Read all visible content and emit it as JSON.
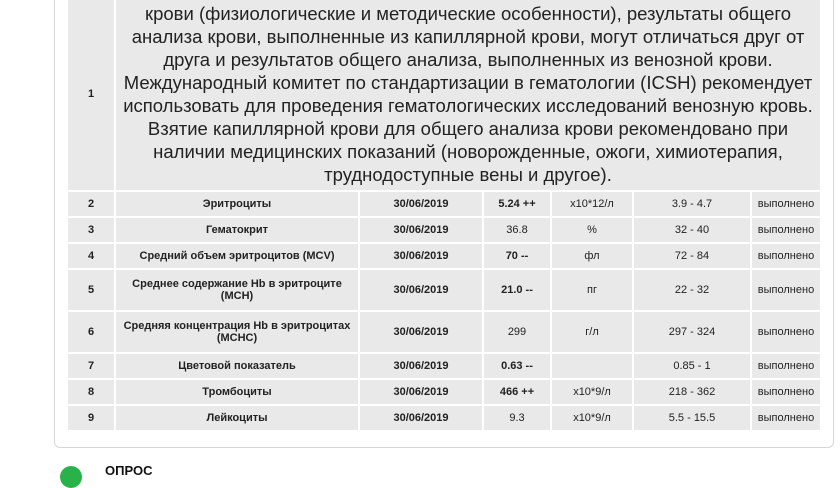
{
  "note_row": {
    "num": "1",
    "text": "крови (физиологические и методические особенности), результаты общего анализа крови, выполненные из капиллярной крови, могут отличаться друг от друга и результатов общего анализа, выполненных из венозной крови. Международный комитет по стандартизации в гематологии (ICSH) рекомендует использовать для проведения гематологических исследований венозную кровь. Взятие капиллярной крови для общего анализа крови рекомендовано при наличии медицинских показаний (новорожденные, ожоги, химиотерапия, труднодоступные вены и другое)."
  },
  "rows": [
    {
      "num": "2",
      "name": "Эритроциты",
      "date": "30/06/2019",
      "value": "5.24 ++",
      "value_bold": true,
      "unit": "x10*12/л",
      "ref": "3.9 - 4.7",
      "status": "выполнено"
    },
    {
      "num": "3",
      "name": "Гематокрит",
      "date": "30/06/2019",
      "value": "36.8",
      "value_bold": false,
      "unit": "%",
      "ref": "32 - 40",
      "status": "выполнено"
    },
    {
      "num": "4",
      "name": "Средний объем эритроцитов (MCV)",
      "date": "30/06/2019",
      "value": "70 --",
      "value_bold": true,
      "unit": "фл",
      "ref": "72 - 84",
      "status": "выполнено"
    },
    {
      "num": "5",
      "name": "Среднее содержание Hb в эритроците (MCH)",
      "date": "30/06/2019",
      "value": "21.0 --",
      "value_bold": true,
      "unit": "пг",
      "ref": "22 - 32",
      "status": "выполнено"
    },
    {
      "num": "6",
      "name": "Средняя концентрация Hb в эритроцитах (MCHC)",
      "date": "30/06/2019",
      "value": "299",
      "value_bold": false,
      "unit": "г/л",
      "ref": "297 - 324",
      "status": "выполнено"
    },
    {
      "num": "7",
      "name": "Цветовой показатель",
      "date": "30/06/2019",
      "value": "0.63 --",
      "value_bold": true,
      "unit": "",
      "ref": "0.85 - 1",
      "status": "выполнено"
    },
    {
      "num": "8",
      "name": "Тромбоциты",
      "date": "30/06/2019",
      "value": "466 ++",
      "value_bold": true,
      "unit": "x10*9/л",
      "ref": "218 - 362",
      "status": "выполнено"
    },
    {
      "num": "9",
      "name": "Лейкоциты",
      "date": "30/06/2019",
      "value": "9.3",
      "value_bold": false,
      "unit": "x10*9/л",
      "ref": "5.5 - 15.5",
      "status": "выполнено"
    }
  ],
  "poll": {
    "label": "ОПРОС",
    "icon": "poll-icon",
    "color": "#2ab24a"
  }
}
